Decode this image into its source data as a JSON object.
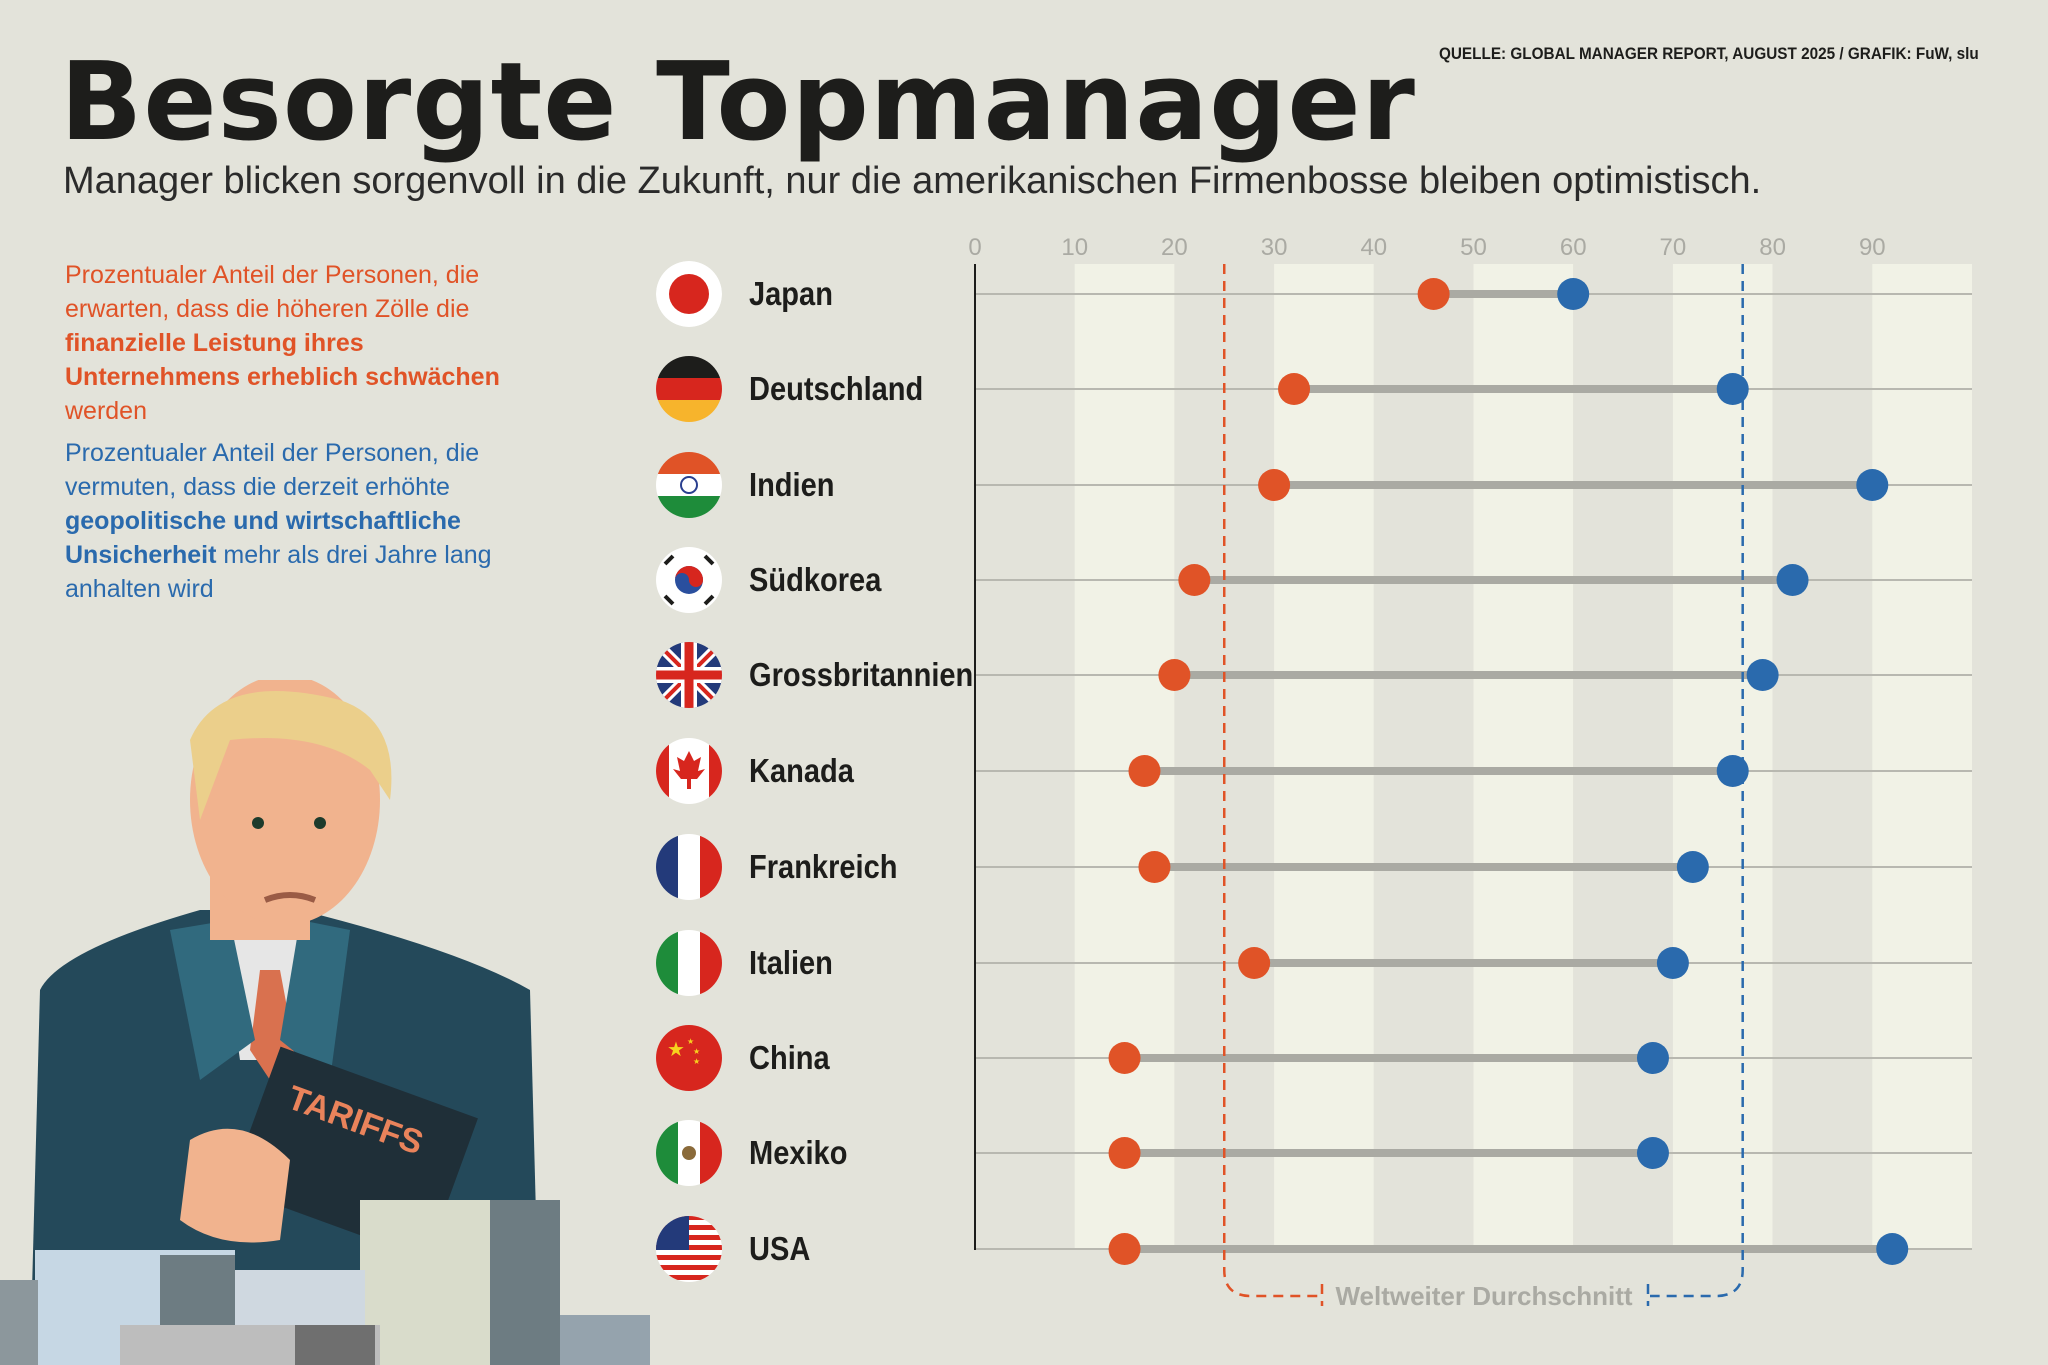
{
  "header": {
    "title": "Besorgte Topmanager",
    "subtitle": "Manager blicken sorgenvoll in die Zukunft, nur die amerikanischen Firmenbosse bleiben optimistisch.",
    "source": "QUELLE: GLOBAL MANAGER REPORT, AUGUST 2025 / GRAFIK: FuW, slu"
  },
  "legend": {
    "orange": {
      "pre": "Prozentualer Anteil der Personen, die erwarten, dass die höheren Zölle die ",
      "bold": "finanzielle Leistung ihres Unternehmens erheblich schwächen",
      "post": " werden"
    },
    "blue": {
      "pre": "Prozentualer Anteil der Personen, die vermuten, dass die derzeit erhöhte ",
      "bold": "geopolitische und wirtschaftliche Unsicherheit",
      "post": " mehr als drei Jahre lang anhalten wird"
    }
  },
  "illustration": {
    "folder_text": "TARIFFS"
  },
  "colors": {
    "orange": "#e05327",
    "blue": "#2a6aad",
    "connector": "#aaaaa3",
    "background": "#e3e3da",
    "band": "#f1f2e6"
  },
  "chart_data": {
    "type": "dumbbell",
    "categories": [
      "Japan",
      "Deutschland",
      "Indien",
      "Südkorea",
      "Grossbritannien",
      "Kanada",
      "Frankreich",
      "Italien",
      "China",
      "Mexiko",
      "USA"
    ],
    "flags": [
      "japan-flag",
      "germany-flag",
      "india-flag",
      "south-korea-flag",
      "uk-flag",
      "canada-flag",
      "france-flag",
      "italy-flag",
      "china-flag",
      "mexico-flag",
      "usa-flag"
    ],
    "series": [
      {
        "color": "#e05327",
        "values": [
          46,
          32,
          30,
          22,
          20,
          17,
          18,
          28,
          15,
          15,
          15
        ]
      },
      {
        "color": "#2a6aad",
        "values": [
          60,
          76,
          90,
          82,
          79,
          76,
          72,
          70,
          68,
          68,
          92
        ]
      }
    ],
    "xlim": [
      0,
      100
    ],
    "xticks": [
      0,
      10,
      20,
      30,
      40,
      50,
      60,
      70,
      80,
      90
    ],
    "reference_lines": [
      {
        "value": 25,
        "color": "#e05327"
      },
      {
        "value": 77,
        "color": "#2a6aad"
      }
    ],
    "reference_label": "Weltweiter Durchschnitt",
    "grid": "alternating vertical bands"
  }
}
